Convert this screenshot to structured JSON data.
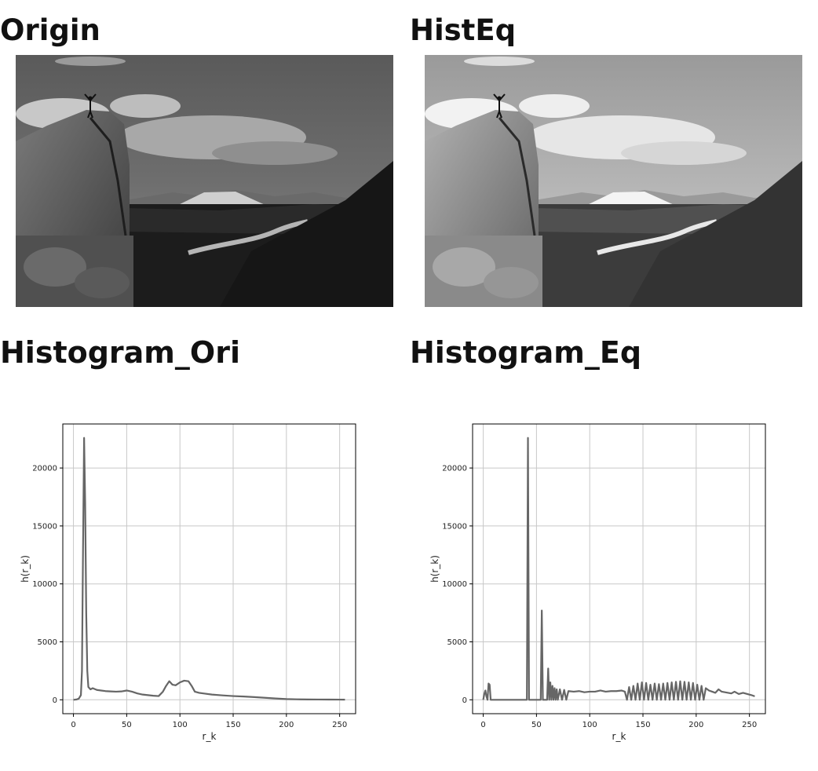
{
  "titles": {
    "origin": "Origin",
    "histeq": "HistEq",
    "hist_ori": "Histogram_Ori",
    "hist_eq": "Histogram_Eq"
  },
  "colors": {
    "line": "#666666",
    "grid": "#c8c8c8",
    "axis": "#000000",
    "background": "#ffffff"
  },
  "chart_data": [
    {
      "type": "line",
      "xlabel": "r_k",
      "ylabel": "h(r_k)",
      "xlim": [
        -10,
        265
      ],
      "ylim": [
        -1200,
        23800
      ],
      "xticks": [
        0,
        50,
        100,
        150,
        200,
        250
      ],
      "yticks": [
        0,
        5000,
        10000,
        15000,
        20000
      ],
      "grid": true,
      "series": [
        {
          "x": [
            0,
            3,
            5,
            7,
            8,
            9,
            10,
            11,
            12,
            13,
            14,
            16,
            18,
            22,
            26,
            30,
            35,
            40,
            45,
            50,
            55,
            60,
            65,
            70,
            75,
            80,
            84,
            87,
            90,
            93,
            96,
            100,
            104,
            108,
            111,
            114,
            118,
            122,
            130,
            140,
            150,
            160,
            170,
            180,
            190,
            200,
            210,
            220,
            230,
            240,
            250,
            255
          ],
          "y": [
            0,
            30,
            100,
            400,
            2500,
            13000,
            22600,
            17000,
            7500,
            2500,
            1100,
            900,
            1000,
            850,
            800,
            750,
            720,
            700,
            720,
            800,
            700,
            550,
            450,
            400,
            350,
            320,
            700,
            1200,
            1600,
            1300,
            1250,
            1500,
            1650,
            1600,
            1200,
            700,
            600,
            550,
            450,
            380,
            320,
            280,
            230,
            170,
            110,
            60,
            40,
            30,
            25,
            20,
            15,
            10
          ]
        }
      ]
    },
    {
      "type": "line",
      "xlabel": "r_k",
      "ylabel": "h(r_k)",
      "xlim": [
        -10,
        265
      ],
      "ylim": [
        -1200,
        23800
      ],
      "xticks": [
        0,
        50,
        100,
        150,
        200,
        250
      ],
      "yticks": [
        0,
        5000,
        10000,
        15000,
        20000
      ],
      "grid": true,
      "series": [
        {
          "x": [
            0,
            1,
            2,
            3,
            4,
            5,
            6,
            7,
            8,
            15,
            25,
            35,
            41,
            42,
            43,
            44,
            45,
            50,
            54,
            55,
            56,
            57,
            58,
            59,
            60,
            61,
            62,
            63,
            64,
            65,
            66,
            67,
            68,
            69,
            70,
            72,
            74,
            76,
            78,
            80,
            85,
            90,
            95,
            100,
            105,
            110,
            115,
            120,
            125,
            130,
            133,
            135,
            137,
            139,
            141,
            143,
            145,
            147,
            149,
            151,
            153,
            155,
            157,
            159,
            161,
            163,
            165,
            167,
            169,
            171,
            173,
            175,
            177,
            179,
            181,
            183,
            185,
            187,
            189,
            191,
            193,
            195,
            197,
            199,
            201,
            203,
            205,
            207,
            209,
            212,
            215,
            218,
            221,
            224,
            227,
            230,
            233,
            236,
            240,
            244,
            248,
            252,
            255
          ],
          "y": [
            0,
            500,
            800,
            300,
            0,
            1400,
            1300,
            0,
            0,
            0,
            0,
            0,
            0,
            22600,
            0,
            0,
            0,
            0,
            0,
            7700,
            0,
            0,
            0,
            0,
            0,
            2700,
            0,
            1500,
            0,
            1200,
            0,
            1000,
            0,
            900,
            0,
            900,
            0,
            850,
            0,
            750,
            700,
            750,
            650,
            700,
            700,
            800,
            700,
            750,
            750,
            800,
            700,
            0,
            1100,
            0,
            1200,
            0,
            1400,
            0,
            1500,
            0,
            1450,
            0,
            1300,
            0,
            1400,
            0,
            1350,
            0,
            1400,
            0,
            1450,
            0,
            1500,
            0,
            1550,
            0,
            1600,
            0,
            1550,
            0,
            1500,
            0,
            1450,
            0,
            1300,
            0,
            1200,
            0,
            1000,
            800,
            700,
            600,
            900,
            700,
            650,
            600,
            550,
            700,
            500,
            600,
            500,
            400,
            300
          ]
        }
      ]
    }
  ]
}
